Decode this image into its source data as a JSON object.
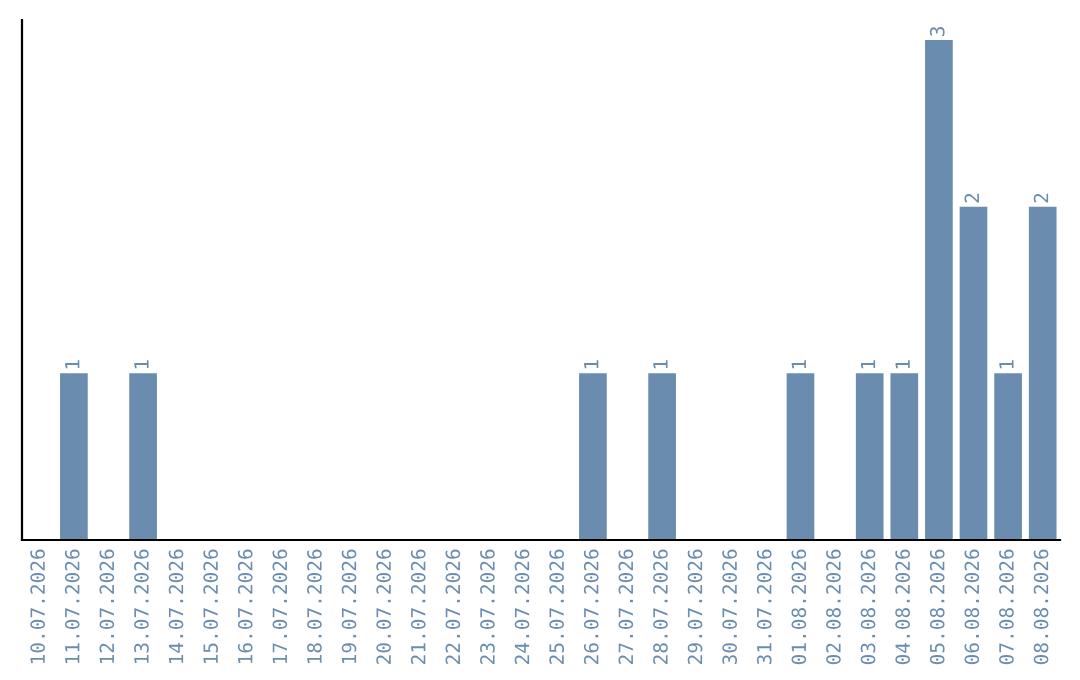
{
  "chart_data": {
    "type": "bar",
    "categories": [
      "10.07.2026",
      "11.07.2026",
      "12.07.2026",
      "13.07.2026",
      "14.07.2026",
      "15.07.2026",
      "16.07.2026",
      "17.07.2026",
      "18.07.2026",
      "19.07.2026",
      "20.07.2026",
      "21.07.2026",
      "22.07.2026",
      "23.07.2026",
      "24.07.2026",
      "25.07.2026",
      "26.07.2026",
      "27.07.2026",
      "28.07.2026",
      "29.07.2026",
      "30.07.2026",
      "31.07.2026",
      "01.08.2026",
      "02.08.2026",
      "03.08.2026",
      "04.08.2026",
      "05.08.2026",
      "06.08.2026",
      "07.08.2026",
      "08.08.2026"
    ],
    "values": [
      0,
      1,
      0,
      1,
      0,
      0,
      0,
      0,
      0,
      0,
      0,
      0,
      0,
      0,
      0,
      0,
      1,
      0,
      1,
      0,
      0,
      0,
      1,
      0,
      1,
      1,
      3,
      2,
      1,
      2
    ],
    "value_labels": [
      null,
      "1",
      null,
      "1",
      null,
      null,
      null,
      null,
      null,
      null,
      null,
      null,
      null,
      null,
      null,
      null,
      "1",
      null,
      "1",
      null,
      null,
      null,
      "1",
      null,
      "1",
      "1",
      "3",
      "2",
      "1",
      "2"
    ],
    "color": "#6a8caf",
    "ylim": [
      0,
      3.12
    ],
    "tick_labels": "x",
    "grid": false,
    "legend": false
  }
}
